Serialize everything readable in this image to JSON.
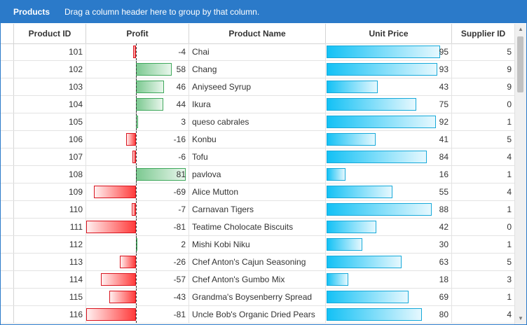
{
  "group_panel": {
    "title": "Products",
    "hint": "Drag a column header here to group by that column."
  },
  "columns": [
    {
      "label": "Product ID"
    },
    {
      "label": "Profit"
    },
    {
      "label": "Product Name"
    },
    {
      "label": "Unit Price"
    },
    {
      "label": "Supplier ID"
    }
  ],
  "profit_scale": {
    "min": -81,
    "max": 81
  },
  "price_scale": {
    "max": 100
  },
  "rows": [
    {
      "id": "101",
      "profit": "-4",
      "name": "Chai",
      "price": "95",
      "supplier": "5"
    },
    {
      "id": "102",
      "profit": "58",
      "name": "Chang",
      "price": "93",
      "supplier": "9"
    },
    {
      "id": "103",
      "profit": "46",
      "name": "Aniyseed Syrup",
      "price": "43",
      "supplier": "9"
    },
    {
      "id": "104",
      "profit": "44",
      "name": "Ikura",
      "price": "75",
      "supplier": "0"
    },
    {
      "id": "105",
      "profit": "3",
      "name": "queso cabrales",
      "price": "92",
      "supplier": "1"
    },
    {
      "id": "106",
      "profit": "-16",
      "name": "Konbu",
      "price": "41",
      "supplier": "5"
    },
    {
      "id": "107",
      "profit": "-6",
      "name": "Tofu",
      "price": "84",
      "supplier": "4"
    },
    {
      "id": "108",
      "profit": "81",
      "name": "pavlova",
      "price": "16",
      "supplier": "1"
    },
    {
      "id": "109",
      "profit": "-69",
      "name": "Alice Mutton",
      "price": "55",
      "supplier": "4"
    },
    {
      "id": "110",
      "profit": "-7",
      "name": "Carnavan Tigers",
      "price": "88",
      "supplier": "1"
    },
    {
      "id": "111",
      "profit": "-81",
      "name": "Teatime Cholocate Biscuits",
      "price": "42",
      "supplier": "0"
    },
    {
      "id": "112",
      "profit": "2",
      "name": "Mishi Kobi Niku",
      "price": "30",
      "supplier": "1"
    },
    {
      "id": "113",
      "profit": "-26",
      "name": "Chef Anton's Cajun Seasoning",
      "price": "63",
      "supplier": "5"
    },
    {
      "id": "114",
      "profit": "-57",
      "name": "Chef Anton's Gumbo Mix",
      "price": "18",
      "supplier": "3"
    },
    {
      "id": "115",
      "profit": "-43",
      "name": "Grandma's Boysenberry Spread",
      "price": "69",
      "supplier": "1"
    },
    {
      "id": "116",
      "profit": "-81",
      "name": "Uncle Bob's Organic Dried Pears",
      "price": "80",
      "supplier": "4"
    }
  ]
}
